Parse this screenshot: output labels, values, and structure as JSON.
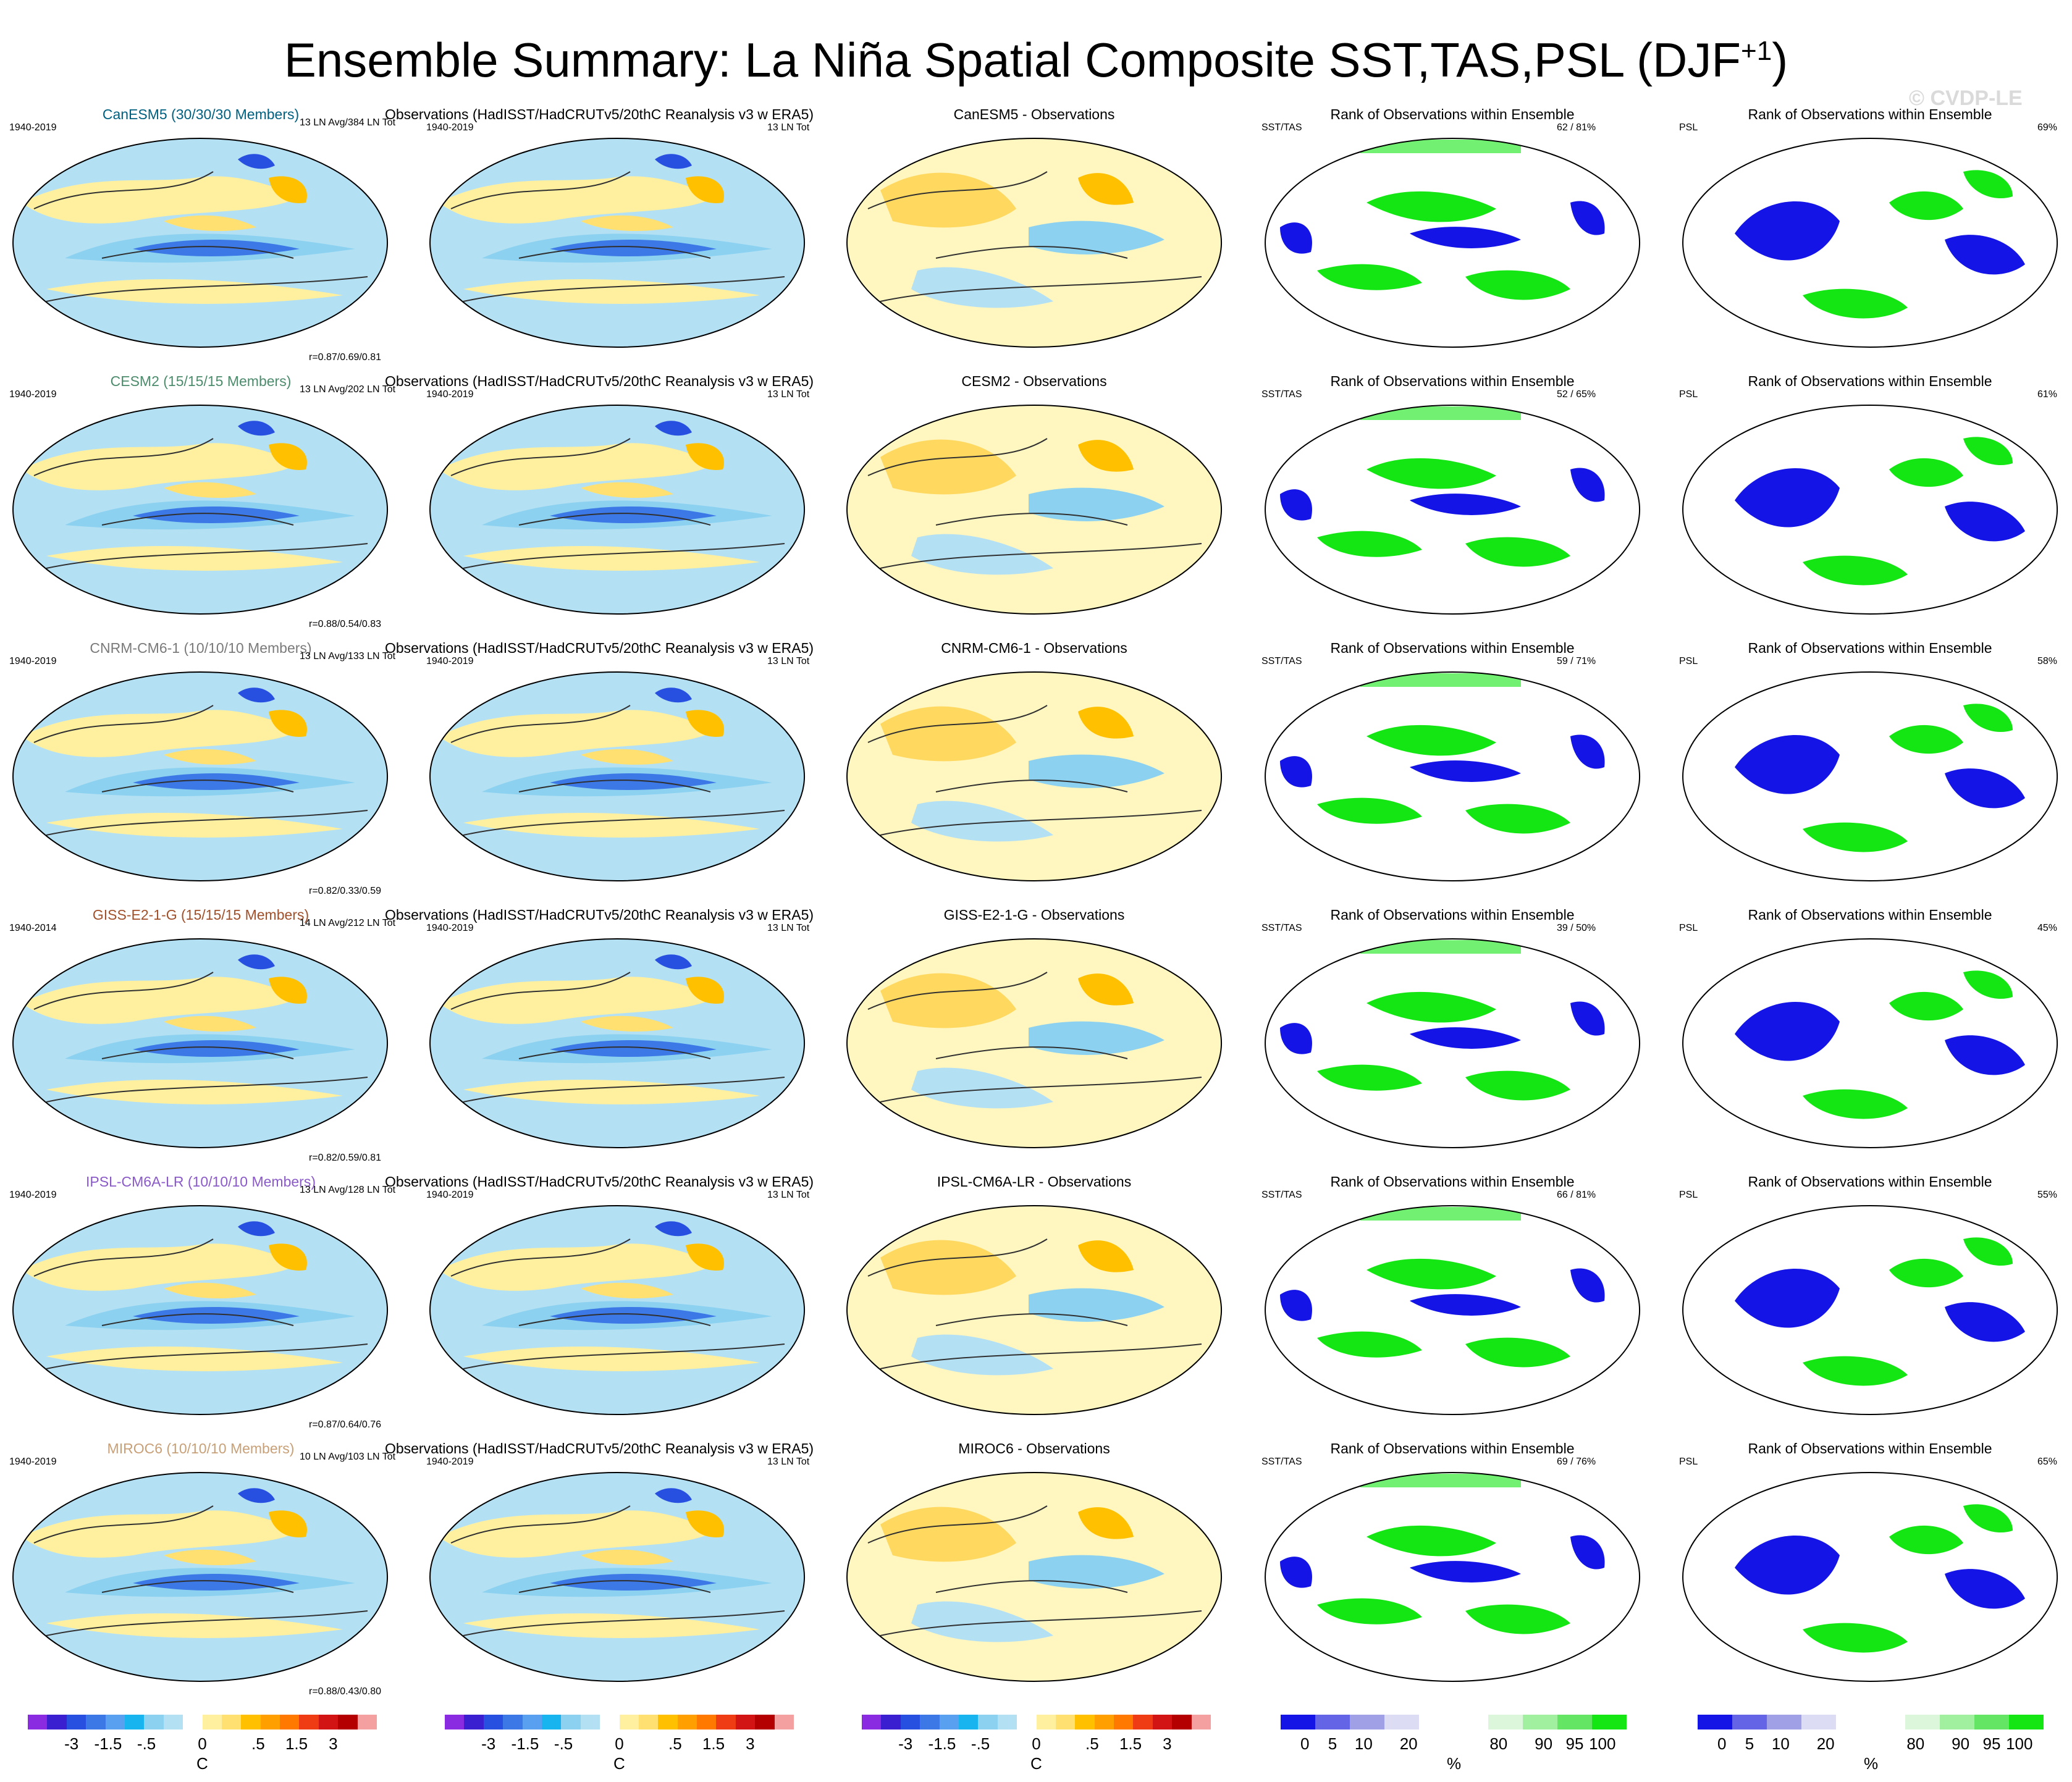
{
  "title": "Ensemble Summary: La Niña Spatial Composite SST,TAS,PSL (DJF",
  "title_sup": "+1",
  "title_suffix": ")",
  "watermark": "© CVDP-LE",
  "rows": [
    {
      "model_title": "CanESM5 (30/30/30 Members)",
      "model_color": "#006080",
      "model_period": "1940-2019",
      "model_stat": "13 LN Avg/384 LN Tot",
      "model_corr": "r=0.87/0.69/0.81",
      "obs_title": "Observations (HadISST/HadCRUTv5/20thC Reanalysis v3 w ERA5)",
      "obs_period": "1940-2019",
      "obs_stat": "13 LN Tot",
      "diff_title": "CanESM5 - Observations",
      "rank_title": "Rank of Observations within Ensemble",
      "rank_label": "SST/TAS",
      "rank_pct": "62 /  81%",
      "psl_title": "Rank of Observations within Ensemble",
      "psl_label": "PSL",
      "psl_pct": "69%"
    },
    {
      "model_title": "CESM2 (15/15/15 Members)",
      "model_color": "#4c8c6c",
      "model_period": "1940-2019",
      "model_stat": "13 LN Avg/202 LN Tot",
      "model_corr": "r=0.88/0.54/0.83",
      "obs_title": "Observations (HadISST/HadCRUTv5/20thC Reanalysis v3 w ERA5)",
      "obs_period": "1940-2019",
      "obs_stat": "13 LN Tot",
      "diff_title": "CESM2 - Observations",
      "rank_title": "Rank of Observations within Ensemble",
      "rank_label": "SST/TAS",
      "rank_pct": "52 /  65%",
      "psl_title": "Rank of Observations within Ensemble",
      "psl_label": "PSL",
      "psl_pct": "61%"
    },
    {
      "model_title": "CNRM-CM6-1 (10/10/10 Members)",
      "model_color": "#7a7a7a",
      "model_period": "1940-2019",
      "model_stat": "13 LN Avg/133 LN Tot",
      "model_corr": "r=0.82/0.33/0.59",
      "obs_title": "Observations (HadISST/HadCRUTv5/20thC Reanalysis v3 w ERA5)",
      "obs_period": "1940-2019",
      "obs_stat": "13 LN Tot",
      "diff_title": "CNRM-CM6-1 - Observations",
      "rank_title": "Rank of Observations within Ensemble",
      "rank_label": "SST/TAS",
      "rank_pct": "59 /  71%",
      "psl_title": "Rank of Observations within Ensemble",
      "psl_label": "PSL",
      "psl_pct": "58%"
    },
    {
      "model_title": "GISS-E2-1-G (15/15/15 Members)",
      "model_color": "#a0502a",
      "model_period": "1940-2014",
      "model_stat": "14 LN Avg/212 LN Tot",
      "model_corr": "r=0.82/0.59/0.81",
      "obs_title": "Observations (HadISST/HadCRUTv5/20thC Reanalysis v3 w ERA5)",
      "obs_period": "1940-2019",
      "obs_stat": "13 LN Tot",
      "diff_title": "GISS-E2-1-G - Observations",
      "rank_title": "Rank of Observations within Ensemble",
      "rank_label": "SST/TAS",
      "rank_pct": "39 /  50%",
      "psl_title": "Rank of Observations within Ensemble",
      "psl_label": "PSL",
      "psl_pct": "45%"
    },
    {
      "model_title": "IPSL-CM6A-LR (10/10/10 Members)",
      "model_color": "#8a5ac8",
      "model_period": "1940-2019",
      "model_stat": "13 LN Avg/128 LN Tot",
      "model_corr": "r=0.87/0.64/0.76",
      "obs_title": "Observations (HadISST/HadCRUTv5/20thC Reanalysis v3 w ERA5)",
      "obs_period": "1940-2019",
      "obs_stat": "13 LN Tot",
      "diff_title": "IPSL-CM6A-LR - Observations",
      "rank_title": "Rank of Observations within Ensemble",
      "rank_label": "SST/TAS",
      "rank_pct": "66 /  81%",
      "psl_title": "Rank of Observations within Ensemble",
      "psl_label": "PSL",
      "psl_pct": "55%"
    },
    {
      "model_title": "MIROC6 (10/10/10 Members)",
      "model_color": "#c8a078",
      "model_period": "1940-2019",
      "model_stat": "10 LN Avg/103 LN Tot",
      "model_corr": "r=0.88/0.43/0.80",
      "obs_title": "Observations (HadISST/HadCRUTv5/20thC Reanalysis v3 w ERA5)",
      "obs_period": "1940-2019",
      "obs_stat": "13 LN Tot",
      "diff_title": "MIROC6 - Observations",
      "rank_title": "Rank of Observations within Ensemble",
      "rank_label": "SST/TAS",
      "rank_pct": "69 /  76%",
      "psl_title": "Rank of Observations within Ensemble",
      "psl_label": "PSL",
      "psl_pct": "65%"
    }
  ],
  "colorbars": {
    "temperature": {
      "colors": [
        "#8a2be2",
        "#3a1fd0",
        "#2850e0",
        "#3c78e6",
        "#5aa0f0",
        "#18b4f0",
        "#8cd2f0",
        "#b4e0f4",
        "#ffffff",
        "#fff0a0",
        "#ffe070",
        "#ffc000",
        "#ffa000",
        "#ff7800",
        "#f03c14",
        "#d21414",
        "#b40000",
        "#f4a0a0"
      ],
      "labels": [
        "-3",
        "-1.5",
        "-.5",
        "0",
        ".5",
        "1.5",
        "3"
      ],
      "unit": "C"
    },
    "rank": {
      "colors": [
        "#1414e6",
        "#6464e6",
        "#a0a0e6",
        "#dcdcf4",
        "#ffffff",
        "#ffffff",
        "#dcf6dc",
        "#a0f0a0",
        "#64e664",
        "#14e614"
      ],
      "labels": [
        "0",
        "5",
        "10",
        "20",
        "80",
        "90",
        "95",
        "100"
      ],
      "unit": "%"
    }
  }
}
